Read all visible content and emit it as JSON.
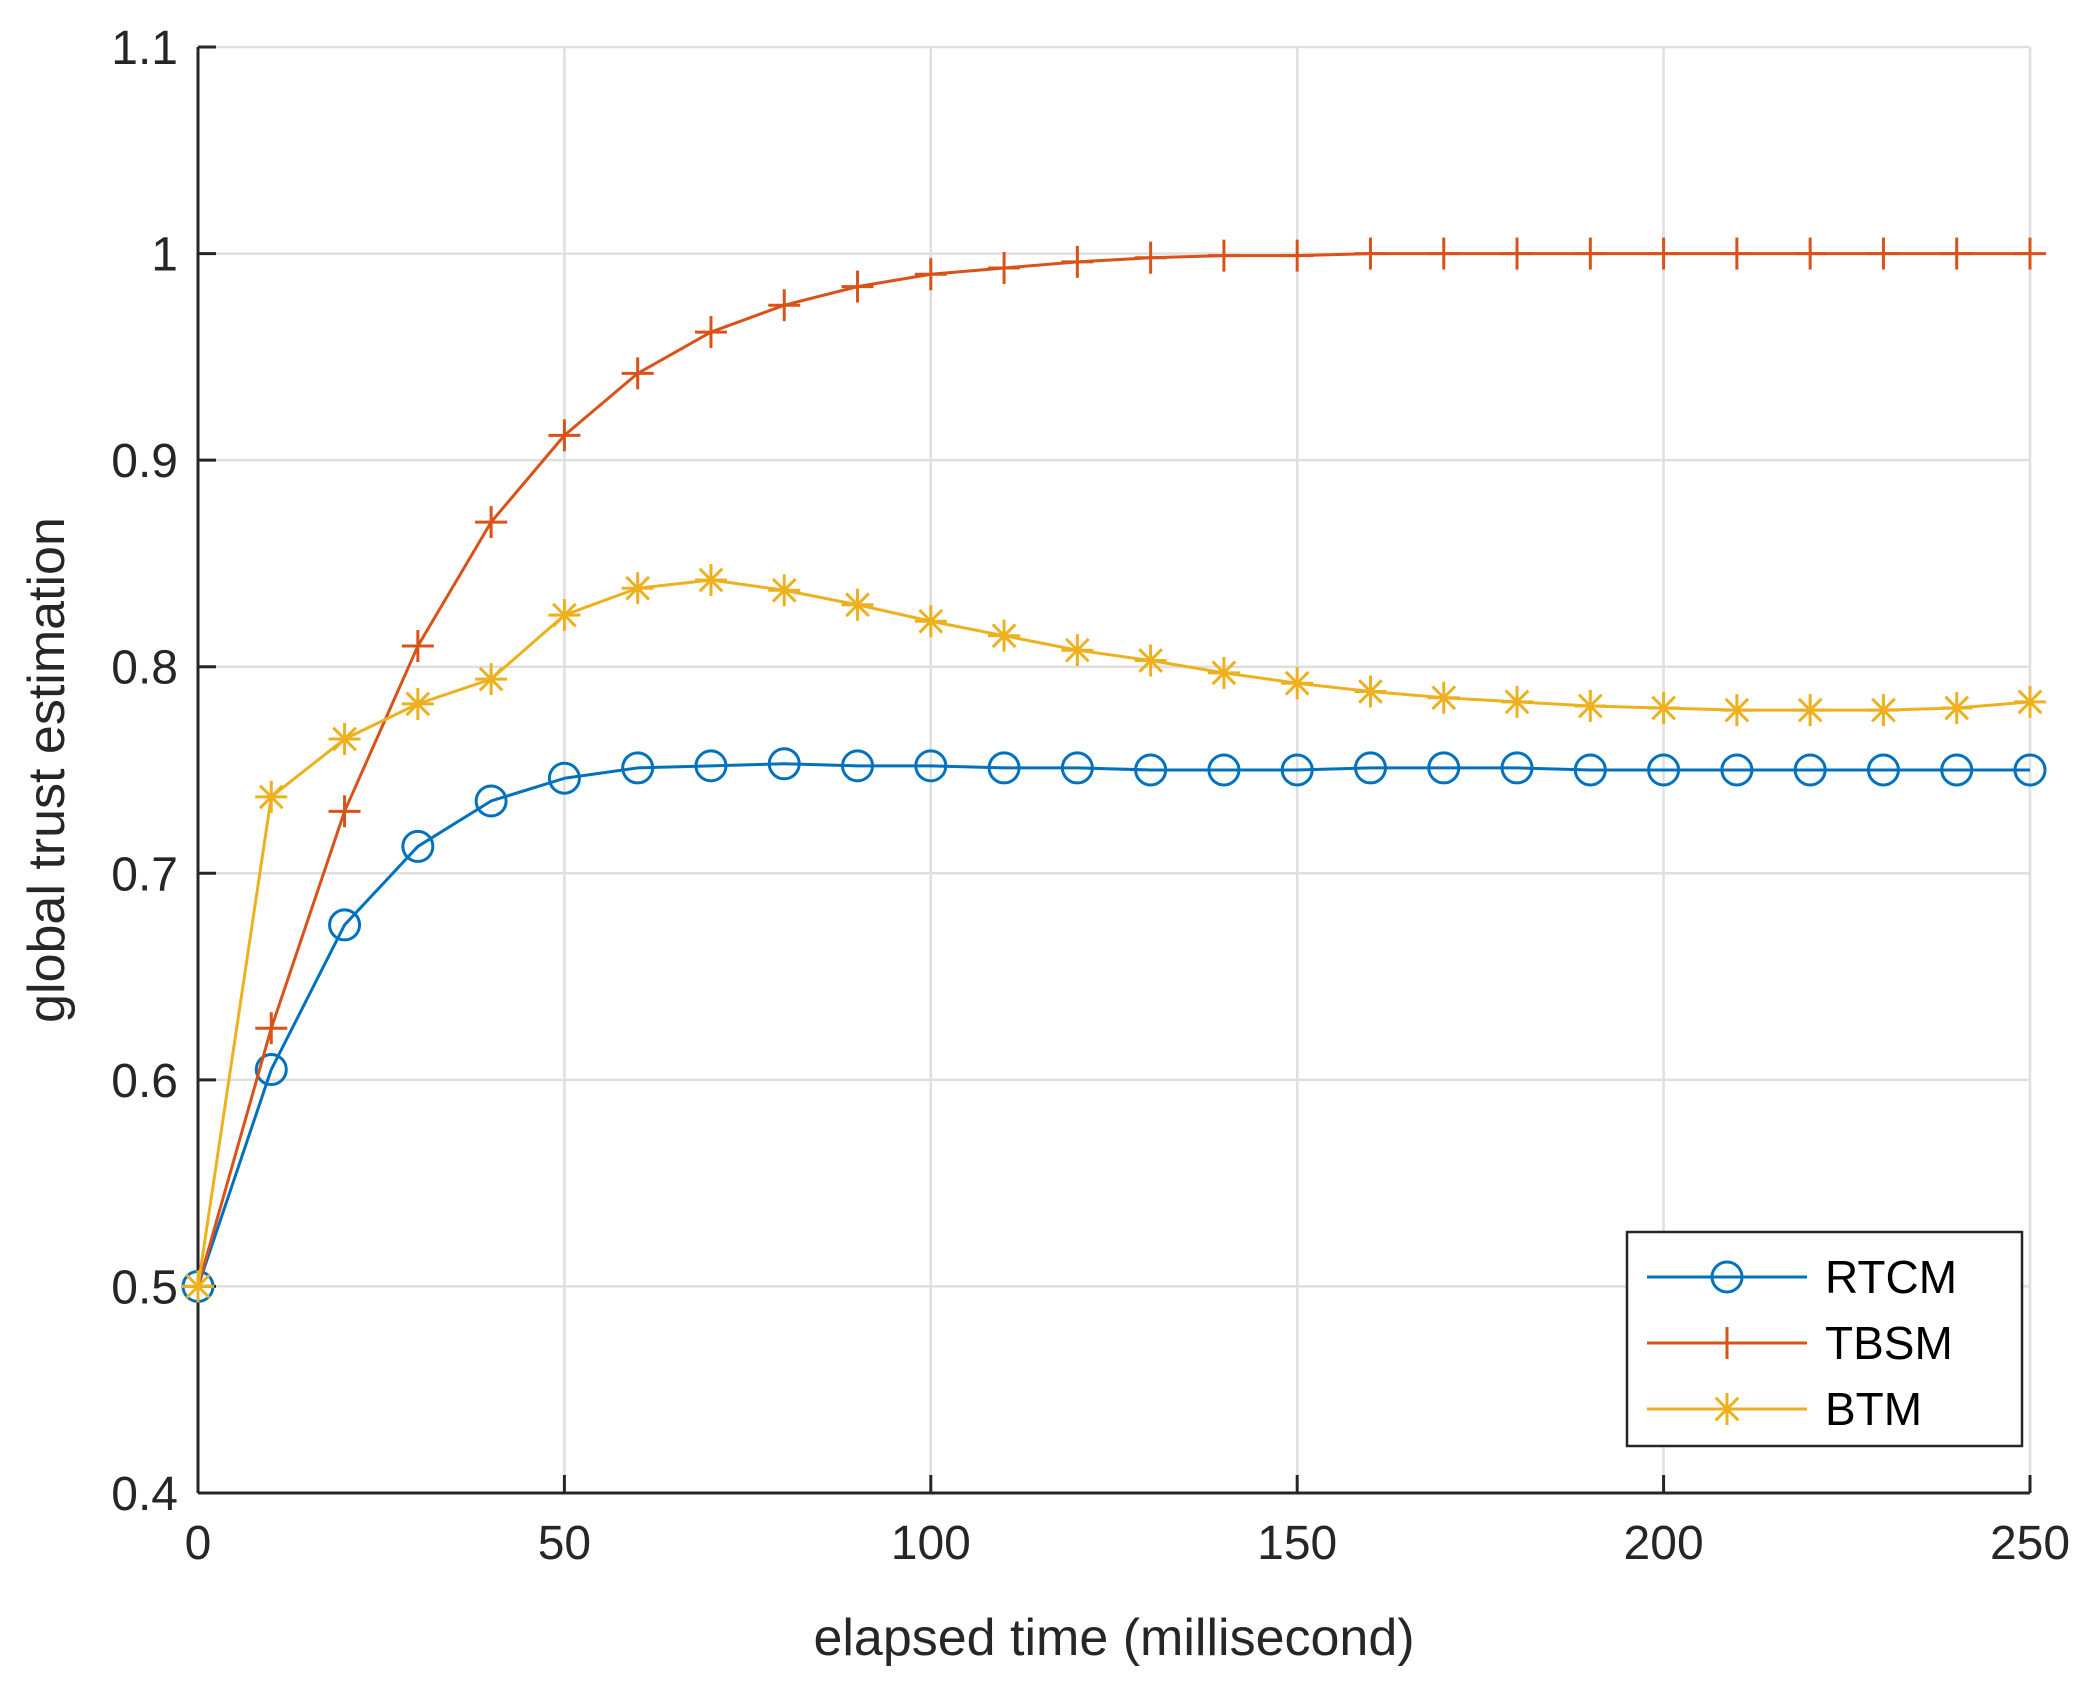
{
  "chart_data": {
    "type": "line",
    "title": "",
    "xlabel": "elapsed time (millisecond)",
    "ylabel": "global trust estimation",
    "xlim": [
      0,
      250
    ],
    "ylim": [
      0.4,
      1.1
    ],
    "xticks": [
      0,
      50,
      100,
      150,
      200,
      250
    ],
    "xtick_labels": [
      "0",
      "50",
      "100",
      "150",
      "200",
      "250"
    ],
    "yticks": [
      0.4,
      0.5,
      0.6,
      0.7,
      0.8,
      0.9,
      1.0,
      1.1
    ],
    "ytick_labels": [
      "0.4",
      "0.5",
      "0.6",
      "0.7",
      "0.8",
      "0.9",
      "1",
      "1.1"
    ],
    "grid": true,
    "legend_position": "bottom-right",
    "x": [
      0,
      10,
      20,
      30,
      40,
      50,
      60,
      70,
      80,
      90,
      100,
      110,
      120,
      130,
      140,
      150,
      160,
      170,
      180,
      190,
      200,
      210,
      220,
      230,
      240,
      250
    ],
    "series": [
      {
        "name": "RTCM",
        "color": "#0072BD",
        "marker": "circle",
        "values": [
          0.5,
          0.605,
          0.675,
          0.713,
          0.735,
          0.746,
          0.751,
          0.752,
          0.753,
          0.752,
          0.752,
          0.751,
          0.751,
          0.75,
          0.75,
          0.75,
          0.751,
          0.751,
          0.751,
          0.75,
          0.75,
          0.75,
          0.75,
          0.75,
          0.75,
          0.75
        ]
      },
      {
        "name": "TBSM",
        "color": "#D95319",
        "marker": "plus",
        "values": [
          0.5,
          0.625,
          0.73,
          0.81,
          0.87,
          0.912,
          0.942,
          0.962,
          0.975,
          0.984,
          0.99,
          0.993,
          0.996,
          0.998,
          0.999,
          0.999,
          1.0,
          1.0,
          1.0,
          1.0,
          1.0,
          1.0,
          1.0,
          1.0,
          1.0,
          1.0
        ]
      },
      {
        "name": "BTM",
        "color": "#EDB120",
        "marker": "asterisk",
        "values": [
          0.5,
          0.737,
          0.765,
          0.782,
          0.794,
          0.825,
          0.838,
          0.842,
          0.837,
          0.83,
          0.822,
          0.815,
          0.808,
          0.803,
          0.797,
          0.792,
          0.788,
          0.785,
          0.783,
          0.781,
          0.78,
          0.779,
          0.779,
          0.779,
          0.78,
          0.783
        ]
      }
    ]
  }
}
